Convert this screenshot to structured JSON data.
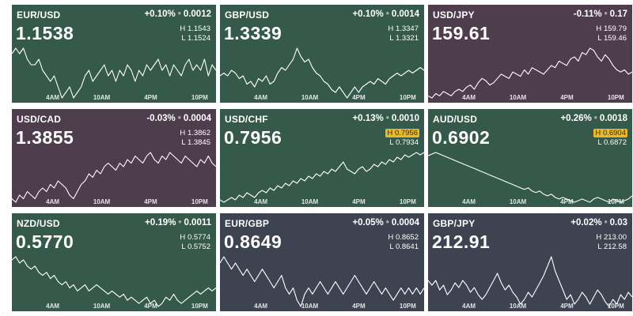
{
  "colors": {
    "up": "#35594a",
    "down": "#4e3d4d",
    "flat": "#3d4350",
    "line": "#ffffff",
    "highlight": "#e9b92c"
  },
  "tiles": [
    {
      "pair": "EUR/USD",
      "change_pct": "+0.10%",
      "change_abs": "0.0012",
      "price": "1.1538",
      "high_label": "H",
      "high": "1.1543",
      "low_label": "L",
      "low": "1.1524",
      "highlight": "",
      "theme": "up",
      "ticks": [
        "4AM",
        "10AM",
        "4PM",
        "10PM"
      ],
      "series": [
        1.1535,
        1.1536,
        1.1535,
        1.1536,
        1.1534,
        1.1533,
        1.1533,
        1.1534,
        1.1532,
        1.1531,
        1.153,
        1.1531,
        1.1529,
        1.1527,
        1.1528,
        1.1529,
        1.1527,
        1.1528,
        1.1529,
        1.1531,
        1.1532,
        1.153,
        1.1531,
        1.1532,
        1.1533,
        1.1531,
        1.1532,
        1.153,
        1.1532,
        1.1531,
        1.1533,
        1.1532,
        1.153,
        1.1532,
        1.1531,
        1.1533,
        1.1532,
        1.1533,
        1.1534,
        1.1532,
        1.1533,
        1.1531,
        1.1533,
        1.1532,
        1.1531,
        1.1533,
        1.1534,
        1.1532,
        1.1533,
        1.1532,
        1.1534,
        1.1531,
        1.1533,
        1.1532
      ]
    },
    {
      "pair": "GBP/USD",
      "change_pct": "+0.10%",
      "change_abs": "0.0014",
      "price": "1.3339",
      "high_label": "H",
      "high": "1.3347",
      "low_label": "L",
      "low": "1.3321",
      "highlight": "",
      "theme": "up",
      "ticks": [
        "4AM",
        "10AM",
        "4PM",
        "10PM"
      ],
      "series": [
        1.3333,
        1.3334,
        1.3333,
        1.3335,
        1.3334,
        1.3332,
        1.3333,
        1.333,
        1.3331,
        1.3329,
        1.3332,
        1.3331,
        1.3333,
        1.333,
        1.3331,
        1.3334,
        1.3336,
        1.3335,
        1.3337,
        1.3339,
        1.3343,
        1.334,
        1.3338,
        1.3339,
        1.3336,
        1.3334,
        1.3333,
        1.3331,
        1.333,
        1.3328,
        1.3327,
        1.3329,
        1.3327,
        1.3325,
        1.3327,
        1.3329,
        1.3327,
        1.3329,
        1.333,
        1.3331,
        1.333,
        1.3332,
        1.3331,
        1.333,
        1.3332,
        1.3333,
        1.3334,
        1.3333,
        1.3334,
        1.3335,
        1.3334,
        1.3335,
        1.3336,
        1.3335
      ]
    },
    {
      "pair": "USD/JPY",
      "change_pct": "-0.11%",
      "change_abs": "0.17",
      "price": "159.61",
      "high_label": "H",
      "high": "159.79",
      "low_label": "L",
      "low": "159.46",
      "highlight": "",
      "theme": "down",
      "ticks": [
        "4AM",
        "10AM",
        "4PM",
        "10PM"
      ],
      "series": [
        159.5,
        159.49,
        159.51,
        159.5,
        159.52,
        159.51,
        159.5,
        159.52,
        159.53,
        159.52,
        159.54,
        159.55,
        159.53,
        159.56,
        159.58,
        159.57,
        159.55,
        159.56,
        159.58,
        159.6,
        159.59,
        159.58,
        159.61,
        159.6,
        159.59,
        159.62,
        159.6,
        159.63,
        159.62,
        159.61,
        159.6,
        159.62,
        159.64,
        159.63,
        159.66,
        159.65,
        159.64,
        159.67,
        159.68,
        159.66,
        159.7,
        159.69,
        159.72,
        159.71,
        159.68,
        159.66,
        159.69,
        159.67,
        159.64,
        159.62,
        159.61,
        159.62,
        159.6,
        159.61
      ]
    },
    {
      "pair": "USD/CAD",
      "change_pct": "-0.03%",
      "change_abs": "0.0004",
      "price": "1.3855",
      "high_label": "H",
      "high": "1.3862",
      "low_label": "L",
      "low": "1.3845",
      "highlight": "",
      "theme": "down",
      "ticks": [
        "4AM",
        "10AM",
        "4PM",
        "10PM"
      ],
      "series": [
        1.3848,
        1.3847,
        1.3849,
        1.3848,
        1.385,
        1.3849,
        1.3848,
        1.385,
        1.3851,
        1.385,
        1.3852,
        1.3851,
        1.3853,
        1.3852,
        1.3851,
        1.3849,
        1.3848,
        1.385,
        1.3852,
        1.3853,
        1.3855,
        1.3854,
        1.3856,
        1.3855,
        1.3857,
        1.3858,
        1.3857,
        1.3856,
        1.3858,
        1.3857,
        1.3859,
        1.3858,
        1.386,
        1.3859,
        1.3858,
        1.386,
        1.3861,
        1.3859,
        1.3858,
        1.386,
        1.3859,
        1.3861,
        1.386,
        1.3859,
        1.3858,
        1.386,
        1.3859,
        1.3858,
        1.3857,
        1.3859,
        1.3858,
        1.386,
        1.3858,
        1.3857
      ]
    },
    {
      "pair": "USD/CHF",
      "change_pct": "+0.13%",
      "change_abs": "0.0010",
      "price": "0.7956",
      "high_label": "H",
      "high": "0.7956",
      "low_label": "L",
      "low": "0.7934",
      "highlight": "high",
      "theme": "up",
      "ticks": [
        "4AM",
        "10AM",
        "4PM",
        "10PM"
      ],
      "series": [
        0.7936,
        0.7935,
        0.7936,
        0.7937,
        0.7936,
        0.7938,
        0.7937,
        0.7939,
        0.7938,
        0.7937,
        0.7939,
        0.794,
        0.7939,
        0.7941,
        0.794,
        0.7942,
        0.7941,
        0.7943,
        0.7942,
        0.7944,
        0.7943,
        0.7945,
        0.7944,
        0.7946,
        0.7945,
        0.7947,
        0.7946,
        0.7948,
        0.7947,
        0.7949,
        0.7948,
        0.795,
        0.7952,
        0.7949,
        0.7948,
        0.7947,
        0.7949,
        0.795,
        0.7948,
        0.7949,
        0.7951,
        0.795,
        0.7952,
        0.7951,
        0.7953,
        0.7952,
        0.7954,
        0.7953,
        0.7955,
        0.7954,
        0.7955,
        0.7956,
        0.7955,
        0.7956
      ]
    },
    {
      "pair": "AUD/USD",
      "change_pct": "+0.26%",
      "change_abs": "0.0018",
      "price": "0.6902",
      "high_label": "H",
      "high": "0.6904",
      "low_label": "L",
      "low": "0.6872",
      "highlight": "high",
      "theme": "up",
      "ticks": [
        "4AM",
        "10AM",
        "4PM",
        "10PM"
      ],
      "series": [
        0.6901,
        0.6902,
        0.6903,
        0.6902,
        0.6901,
        0.69,
        0.6899,
        0.6898,
        0.6897,
        0.6896,
        0.6895,
        0.6894,
        0.6893,
        0.6892,
        0.6891,
        0.689,
        0.6889,
        0.6888,
        0.6887,
        0.6886,
        0.6885,
        0.6884,
        0.6883,
        0.6882,
        0.6881,
        0.688,
        0.6881,
        0.6879,
        0.6878,
        0.6879,
        0.6877,
        0.6876,
        0.6877,
        0.6875,
        0.6874,
        0.6875,
        0.6874,
        0.6873,
        0.6872,
        0.6873,
        0.6874,
        0.6873,
        0.6872,
        0.6874,
        0.6875,
        0.6874,
        0.6873,
        0.6872,
        0.6874,
        0.6873,
        0.6872,
        0.6873,
        0.6874,
        0.6876
      ]
    },
    {
      "pair": "NZD/USD",
      "change_pct": "+0.19%",
      "change_abs": "0.0011",
      "price": "0.5770",
      "high_label": "H",
      "high": "0.5774",
      "low_label": "L",
      "low": "0.5752",
      "highlight": "",
      "theme": "up",
      "ticks": [
        "4AM",
        "10AM",
        "4PM",
        "10PM"
      ],
      "series": [
        0.5768,
        0.5769,
        0.5767,
        0.5768,
        0.5766,
        0.5765,
        0.5766,
        0.5764,
        0.5763,
        0.5764,
        0.5762,
        0.5763,
        0.5761,
        0.576,
        0.5761,
        0.5759,
        0.576,
        0.5758,
        0.5759,
        0.576,
        0.5758,
        0.5759,
        0.576,
        0.5759,
        0.5758,
        0.5757,
        0.5758,
        0.5757,
        0.5756,
        0.5757,
        0.5755,
        0.5756,
        0.5755,
        0.5754,
        0.5755,
        0.5756,
        0.5754,
        0.5755,
        0.5753,
        0.5754,
        0.5756,
        0.5755,
        0.5757,
        0.5755,
        0.5754,
        0.5755,
        0.5756,
        0.5757,
        0.5758,
        0.5757,
        0.5758,
        0.5759,
        0.5758,
        0.5759
      ]
    },
    {
      "pair": "EUR/GBP",
      "change_pct": "+0.05%",
      "change_abs": "0.0004",
      "price": "0.8649",
      "high_label": "H",
      "high": "0.8652",
      "low_label": "L",
      "low": "0.8641",
      "highlight": "",
      "theme": "flat",
      "ticks": [
        "4AM",
        "10AM",
        "4PM",
        "10PM"
      ],
      "series": [
        0.8649,
        0.865,
        0.8649,
        0.8648,
        0.8649,
        0.8648,
        0.8647,
        0.8648,
        0.8647,
        0.8646,
        0.8647,
        0.8648,
        0.8647,
        0.8646,
        0.8645,
        0.8646,
        0.8647,
        0.8645,
        0.8644,
        0.8645,
        0.8643,
        0.8642,
        0.8644,
        0.8645,
        0.8644,
        0.8645,
        0.8646,
        0.8645,
        0.8644,
        0.8645,
        0.8646,
        0.8645,
        0.8644,
        0.8645,
        0.8646,
        0.8647,
        0.8646,
        0.8645,
        0.8644,
        0.8645,
        0.8646,
        0.8645,
        0.8644,
        0.8645,
        0.8644,
        0.8643,
        0.8644,
        0.8645,
        0.8644,
        0.8645,
        0.8644,
        0.8645,
        0.8644,
        0.8645
      ]
    },
    {
      "pair": "GBP/JPY",
      "change_pct": "+0.02%",
      "change_abs": "0.03",
      "price": "212.91",
      "high_label": "H",
      "high": "213.00",
      "low_label": "L",
      "low": "212.58",
      "highlight": "",
      "theme": "flat",
      "ticks": [
        "4AM",
        "10AM",
        "4PM",
        "10PM"
      ],
      "series": [
        212.8,
        212.78,
        212.8,
        212.76,
        212.78,
        212.74,
        212.76,
        212.79,
        212.77,
        212.8,
        212.78,
        212.75,
        212.77,
        212.74,
        212.72,
        212.74,
        212.77,
        212.8,
        212.83,
        212.79,
        212.76,
        212.78,
        212.75,
        212.73,
        212.7,
        212.72,
        212.75,
        212.73,
        212.76,
        212.79,
        212.82,
        212.86,
        212.9,
        212.84,
        212.8,
        212.76,
        212.72,
        212.74,
        212.7,
        212.72,
        212.75,
        212.73,
        212.7,
        212.73,
        212.76,
        212.74,
        212.71,
        212.69,
        212.72,
        212.7,
        212.74,
        212.72,
        212.75,
        212.73
      ]
    }
  ],
  "watermark": "."
}
